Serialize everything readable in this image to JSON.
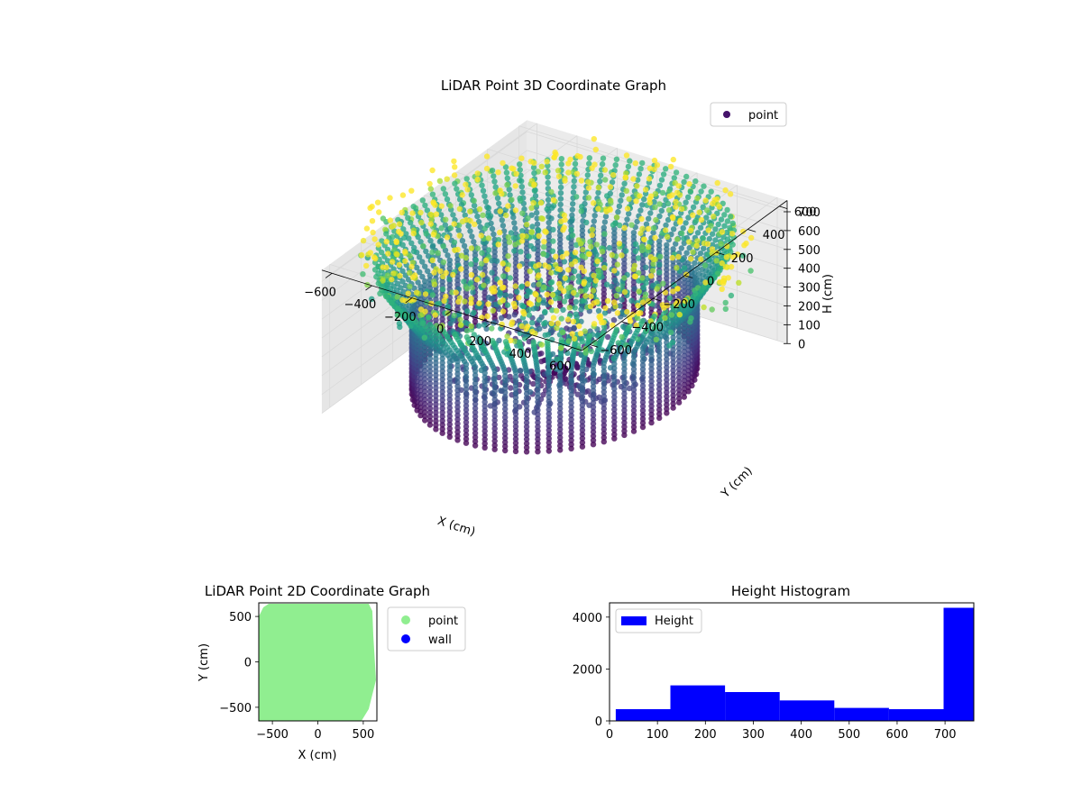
{
  "chart_data": [
    {
      "type": "scatter",
      "projection": "3d",
      "title": "LiDAR Point 3D Coordinate Graph",
      "xlabel": "X (cm)",
      "ylabel": "Y (cm)",
      "zlabel": "H (cm)",
      "xlim": [
        -650,
        650
      ],
      "ylim": [
        -650,
        650
      ],
      "zlim": [
        760,
        0
      ],
      "z_axis_inverted": true,
      "x_ticks": [
        "−600",
        "−400",
        "−200",
        "0",
        "200",
        "400",
        "600"
      ],
      "y_ticks": [
        "−600",
        "−400",
        "−200",
        "0",
        "200",
        "400",
        "600"
      ],
      "z_ticks": [
        "0",
        "100",
        "200",
        "300",
        "400",
        "500",
        "600",
        "700"
      ],
      "colormap": "viridis",
      "legend": {
        "position": "upper right",
        "entries": [
          {
            "label": "point",
            "color": "#45136b"
          }
        ]
      },
      "grid": true,
      "structure": {
        "description_values": "cylindrical wall of sampled points",
        "ring_radius_cm": 560,
        "wall_columns": 80,
        "wall_height_range_cm": [
          0,
          760
        ],
        "floor_height_cm": 760
      }
    },
    {
      "type": "scatter",
      "title": "LiDAR Point 2D Coordinate Graph",
      "xlabel": "X (cm)",
      "ylabel": "Y (cm)",
      "xlim": [
        -650,
        650
      ],
      "ylim": [
        -650,
        650
      ],
      "x_ticks": [
        "−500",
        "0",
        "500"
      ],
      "y_ticks": [
        "−500",
        "0",
        "500"
      ],
      "legend": {
        "position": "outside right",
        "entries": [
          {
            "label": "point",
            "color": "#90ee90"
          },
          {
            "label": "wall",
            "color": "#0000ff"
          }
        ]
      }
    },
    {
      "type": "bar",
      "title": "Height Histogram",
      "xlim": [
        0,
        760
      ],
      "ylim": [
        0,
        4550
      ],
      "x_ticks": [
        "0",
        "100",
        "200",
        "300",
        "400",
        "500",
        "600",
        "700"
      ],
      "y_ticks": [
        "0",
        "2000",
        "4000"
      ],
      "legend": {
        "position": "upper left",
        "entries": [
          {
            "label": "Height",
            "color": "#0000ff"
          }
        ]
      },
      "bin_edges": [
        13,
        127,
        241,
        355,
        469,
        583,
        697,
        760
      ],
      "counts": [
        450,
        1370,
        1110,
        790,
        500,
        450,
        4360
      ],
      "color": "#0000ff"
    }
  ]
}
